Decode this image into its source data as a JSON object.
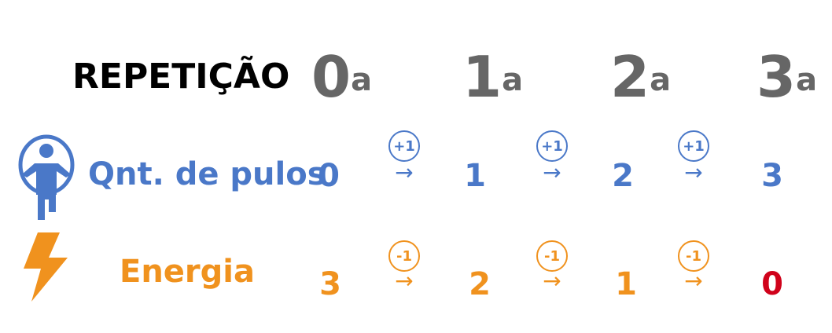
{
  "header": {
    "label": "REPETIÇÃO"
  },
  "repetitions": [
    {
      "num": "0",
      "sup": "a"
    },
    {
      "num": "1",
      "sup": "a"
    },
    {
      "num": "2",
      "sup": "a"
    },
    {
      "num": "3",
      "sup": "a"
    }
  ],
  "rows": [
    {
      "label": "Qnt. de pulos",
      "icon": "jump-rope-person-icon",
      "values": [
        "0",
        "1",
        "2",
        "3"
      ],
      "steps": [
        "+1",
        "+1",
        "+1"
      ],
      "arrow": "→"
    },
    {
      "label": "Energia",
      "icon": "lightning-bolt-icon",
      "values": [
        "3",
        "2",
        "1",
        "0"
      ],
      "steps": [
        "-1",
        "-1",
        "-1"
      ],
      "arrow": "→"
    }
  ],
  "colors": {
    "blue": "#4a78c8",
    "orange": "#f0921e",
    "red": "#d0021b",
    "gray": "#666666",
    "black": "#000000"
  }
}
